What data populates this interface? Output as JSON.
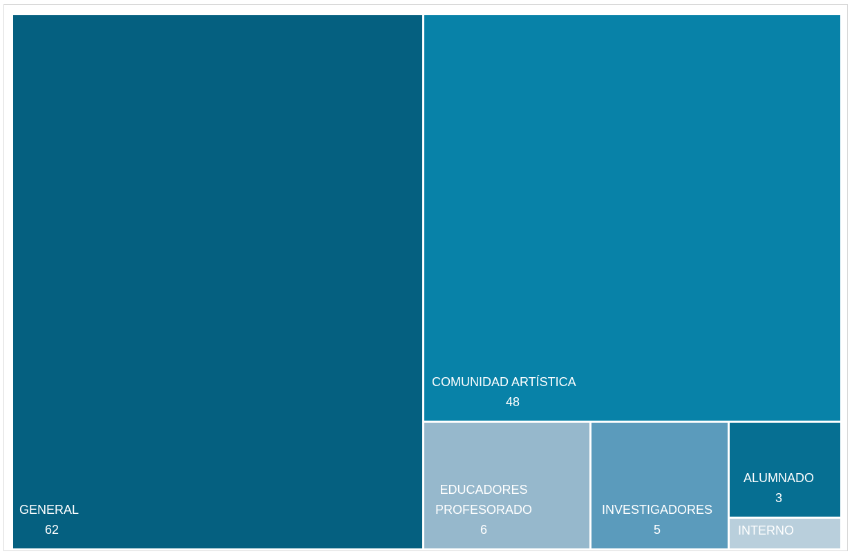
{
  "chart_data": {
    "type": "treemap",
    "title": "",
    "items": [
      {
        "name_lines": [
          "GENERAL"
        ],
        "value": 62,
        "color": "#056080"
      },
      {
        "name_lines": [
          "COMUNIDAD ARTÍSTICA"
        ],
        "value": 48,
        "color": "#0882a8"
      },
      {
        "name_lines": [
          "EDUCADORES",
          "PROFESORADO"
        ],
        "value": 6,
        "color": "#96b8cc"
      },
      {
        "name_lines": [
          "INVESTIGADORES"
        ],
        "value": 5,
        "color": "#5b9bbc"
      },
      {
        "name_lines": [
          "ALUMNADO"
        ],
        "value": 3,
        "color": "#066f92"
      },
      {
        "name_lines": [
          "INTERNO"
        ],
        "value": null,
        "color": "#b9cfdc"
      }
    ]
  }
}
